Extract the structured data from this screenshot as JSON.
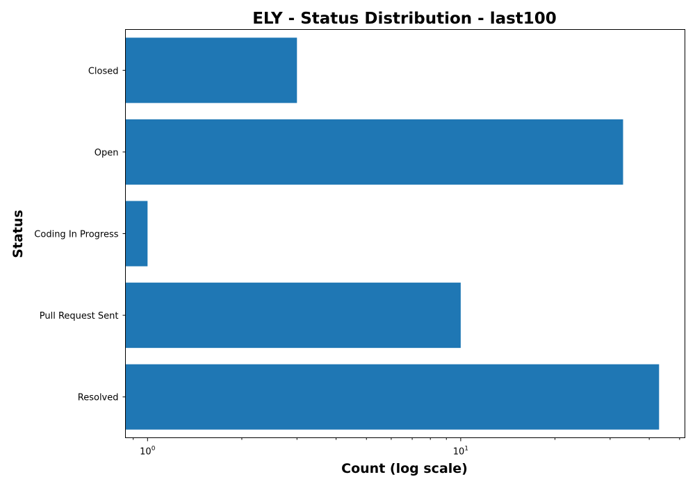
{
  "chart_data": {
    "type": "bar",
    "orientation": "horizontal",
    "title": "ELY - Status Distribution - last100",
    "xlabel": "Count (log scale)",
    "ylabel": "Status",
    "x_scale": "log",
    "xlim": [
      0.85,
      52
    ],
    "x_major_ticks": [
      {
        "base": "10",
        "exp": "0",
        "value": 1
      },
      {
        "base": "10",
        "exp": "1",
        "value": 10
      }
    ],
    "categories": [
      "Closed",
      "Open",
      "Coding In Progress",
      "Pull Request Sent",
      "Resolved"
    ],
    "values": [
      3,
      33,
      1,
      10,
      43
    ],
    "bar_color": "#1f77b4",
    "grid": false,
    "legend": "none"
  }
}
